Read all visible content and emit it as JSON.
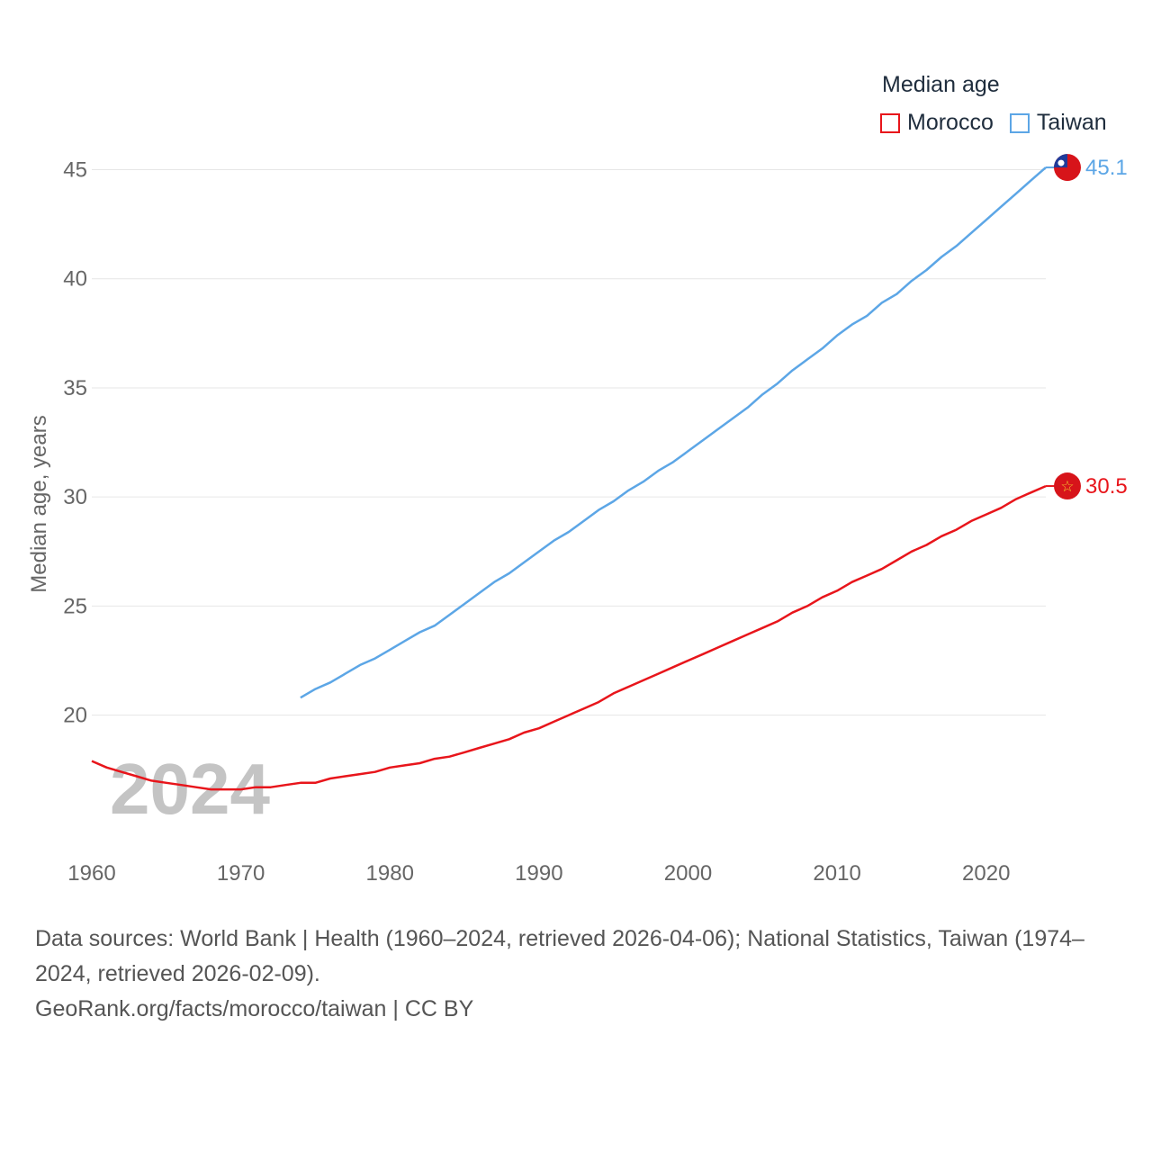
{
  "legend": {
    "title": "Median age",
    "items": [
      {
        "label": "Morocco",
        "color": "#e8151b"
      },
      {
        "label": "Taiwan",
        "color": "#5ca6e6"
      }
    ]
  },
  "watermark_year": "2024",
  "footer": {
    "sources": "Data sources: World Bank | Health (1960–2024, retrieved 2026-04-06); National Statistics, Taiwan (1974–2024, retrieved 2026-02-09).",
    "credit": "GeoRank.org/facts/morocco/taiwan | CC BY"
  },
  "chart_data": {
    "type": "line",
    "title": "Median age",
    "xlabel": "",
    "ylabel": "Median age, years",
    "xlim": [
      1960,
      2024
    ],
    "ylim": [
      14.5,
      47
    ],
    "x_ticks": [
      1960,
      1970,
      1980,
      1990,
      2000,
      2010,
      2020
    ],
    "y_ticks": [
      20,
      25,
      30,
      35,
      40,
      45
    ],
    "grid": true,
    "series": [
      {
        "name": "Morocco",
        "color": "#e8151b",
        "end_label": "30.5",
        "x": [
          1960,
          1961,
          1962,
          1963,
          1964,
          1965,
          1966,
          1967,
          1968,
          1969,
          1970,
          1971,
          1972,
          1973,
          1974,
          1975,
          1976,
          1977,
          1978,
          1979,
          1980,
          1981,
          1982,
          1983,
          1984,
          1985,
          1986,
          1987,
          1988,
          1989,
          1990,
          1991,
          1992,
          1993,
          1994,
          1995,
          1996,
          1997,
          1998,
          1999,
          2000,
          2001,
          2002,
          2003,
          2004,
          2005,
          2006,
          2007,
          2008,
          2009,
          2010,
          2011,
          2012,
          2013,
          2014,
          2015,
          2016,
          2017,
          2018,
          2019,
          2020,
          2021,
          2022,
          2023,
          2024
        ],
        "y": [
          17.9,
          17.6,
          17.4,
          17.2,
          17.0,
          16.9,
          16.8,
          16.7,
          16.6,
          16.6,
          16.6,
          16.7,
          16.7,
          16.8,
          16.9,
          16.9,
          17.1,
          17.2,
          17.3,
          17.4,
          17.6,
          17.7,
          17.8,
          18.0,
          18.1,
          18.3,
          18.5,
          18.7,
          18.9,
          19.2,
          19.4,
          19.7,
          20.0,
          20.3,
          20.6,
          21.0,
          21.3,
          21.6,
          21.9,
          22.2,
          22.5,
          22.8,
          23.1,
          23.4,
          23.7,
          24.0,
          24.3,
          24.7,
          25.0,
          25.4,
          25.7,
          26.1,
          26.4,
          26.7,
          27.1,
          27.5,
          27.8,
          28.2,
          28.5,
          28.9,
          29.2,
          29.5,
          29.9,
          30.2,
          30.5
        ]
      },
      {
        "name": "Taiwan",
        "color": "#5ca6e6",
        "end_label": "45.1",
        "x": [
          1974,
          1975,
          1976,
          1977,
          1978,
          1979,
          1980,
          1981,
          1982,
          1983,
          1984,
          1985,
          1986,
          1987,
          1988,
          1989,
          1990,
          1991,
          1992,
          1993,
          1994,
          1995,
          1996,
          1997,
          1998,
          1999,
          2000,
          2001,
          2002,
          2003,
          2004,
          2005,
          2006,
          2007,
          2008,
          2009,
          2010,
          2011,
          2012,
          2013,
          2014,
          2015,
          2016,
          2017,
          2018,
          2019,
          2020,
          2021,
          2022,
          2023,
          2024
        ],
        "y": [
          20.8,
          21.2,
          21.5,
          21.9,
          22.3,
          22.6,
          23.0,
          23.4,
          23.8,
          24.1,
          24.6,
          25.1,
          25.6,
          26.1,
          26.5,
          27.0,
          27.5,
          28.0,
          28.4,
          28.9,
          29.4,
          29.8,
          30.3,
          30.7,
          31.2,
          31.6,
          32.1,
          32.6,
          33.1,
          33.6,
          34.1,
          34.7,
          35.2,
          35.8,
          36.3,
          36.8,
          37.4,
          37.9,
          38.3,
          38.9,
          39.3,
          39.9,
          40.4,
          41.0,
          41.5,
          42.1,
          42.7,
          43.3,
          43.9,
          44.5,
          45.1
        ]
      }
    ]
  }
}
